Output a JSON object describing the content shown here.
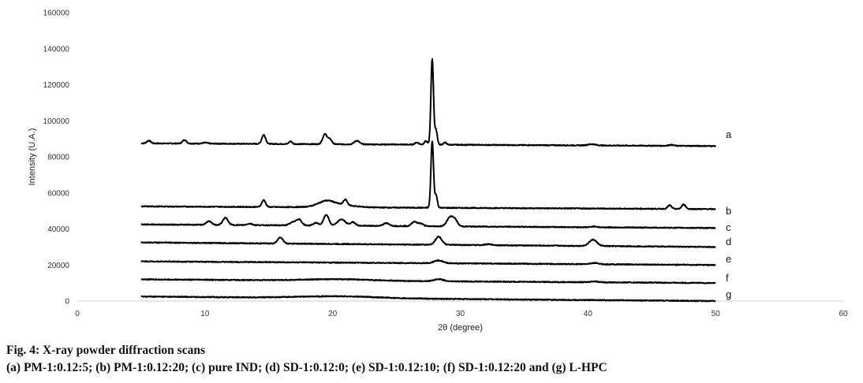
{
  "figure": {
    "caption_title": "Fig. 4: X-ray powder diffraction scans",
    "caption_text": "(a) PM-1:0.12:5; (b) PM-1:0.12:20; (c) pure IND; (d) SD-1:0.12:0; (e) SD-1:0.12:10; (f) SD-1:0.12:20 and (g) L-HPC"
  },
  "chart_data": {
    "type": "line",
    "xlabel": "2θ (degree)",
    "ylabel": "Intensity (U.A.)",
    "xlim": [
      0,
      60
    ],
    "ylim": [
      0,
      160000
    ],
    "xticks": [
      0,
      10,
      20,
      30,
      40,
      50,
      60
    ],
    "yticks": [
      0,
      20000,
      40000,
      60000,
      80000,
      100000,
      120000,
      140000,
      160000
    ],
    "grid": false,
    "line_color": "#000000",
    "x_range_data": [
      5,
      50
    ],
    "series": [
      {
        "name": "a",
        "baseline_start": 87500,
        "baseline_end": 86000,
        "peaks": [
          [
            5.6,
            1500,
            0.15
          ],
          [
            8.4,
            2000,
            0.15
          ],
          [
            10,
            500,
            0.2
          ],
          [
            14.6,
            5000,
            0.15
          ],
          [
            16.7,
            1500,
            0.12
          ],
          [
            19.4,
            5500,
            0.18
          ],
          [
            19.8,
            2500,
            0.15
          ],
          [
            21.9,
            2000,
            0.2
          ],
          [
            26.6,
            1200,
            0.15
          ],
          [
            27.3,
            2000,
            0.12
          ],
          [
            27.8,
            47500,
            0.1
          ],
          [
            28.1,
            8000,
            0.1
          ],
          [
            28.8,
            1200,
            0.12
          ],
          [
            40.3,
            700,
            0.3
          ],
          [
            46.5,
            500,
            0.2
          ]
        ]
      },
      {
        "name": "b",
        "baseline_start": 52500,
        "baseline_end": 51000,
        "peaks": [
          [
            14.6,
            3800,
            0.15
          ],
          [
            19.5,
            2500,
            0.6
          ],
          [
            21,
            3000,
            0.15
          ],
          [
            20.3,
            1500,
            1.2
          ],
          [
            27.8,
            37000,
            0.1
          ],
          [
            28.1,
            7000,
            0.1
          ],
          [
            46.4,
            2000,
            0.15
          ],
          [
            47.5,
            2500,
            0.15
          ]
        ]
      },
      {
        "name": "c",
        "baseline_start": 42500,
        "baseline_end": 40500,
        "peaks": [
          [
            10.3,
            2000,
            0.2
          ],
          [
            11.6,
            4000,
            0.2
          ],
          [
            13.5,
            800,
            0.2
          ],
          [
            17,
            2000,
            0.3
          ],
          [
            17.4,
            2500,
            0.2
          ],
          [
            18.7,
            1500,
            0.2
          ],
          [
            19.5,
            6000,
            0.2
          ],
          [
            20.7,
            3500,
            0.3
          ],
          [
            21.6,
            2000,
            0.2
          ],
          [
            24.2,
            1500,
            0.25
          ],
          [
            26.4,
            2500,
            0.2
          ],
          [
            26.9,
            1500,
            0.2
          ],
          [
            29.2,
            5000,
            0.25
          ],
          [
            29.6,
            3000,
            0.2
          ],
          [
            40.5,
            500,
            0.2
          ]
        ]
      },
      {
        "name": "d",
        "baseline_start": 32500,
        "baseline_end": 30000,
        "peaks": [
          [
            15.9,
            3500,
            0.2
          ],
          [
            28.3,
            4500,
            0.25
          ],
          [
            32.2,
            500,
            0.3
          ],
          [
            40.4,
            3500,
            0.3
          ]
        ]
      },
      {
        "name": "e",
        "baseline_start": 22000,
        "baseline_end": 20000,
        "peaks": [
          [
            28.3,
            1500,
            0.35
          ],
          [
            40.5,
            700,
            0.3
          ]
        ]
      },
      {
        "name": "f",
        "baseline_start": 12000,
        "baseline_end": 10000,
        "peaks": [
          [
            20.5,
            800,
            2.5
          ],
          [
            28.3,
            1200,
            0.35
          ],
          [
            40.5,
            500,
            0.3
          ]
        ]
      },
      {
        "name": "g",
        "baseline_start": 2500,
        "baseline_end": 0,
        "peaks": [
          [
            20.5,
            1000,
            3.0
          ]
        ]
      }
    ]
  }
}
